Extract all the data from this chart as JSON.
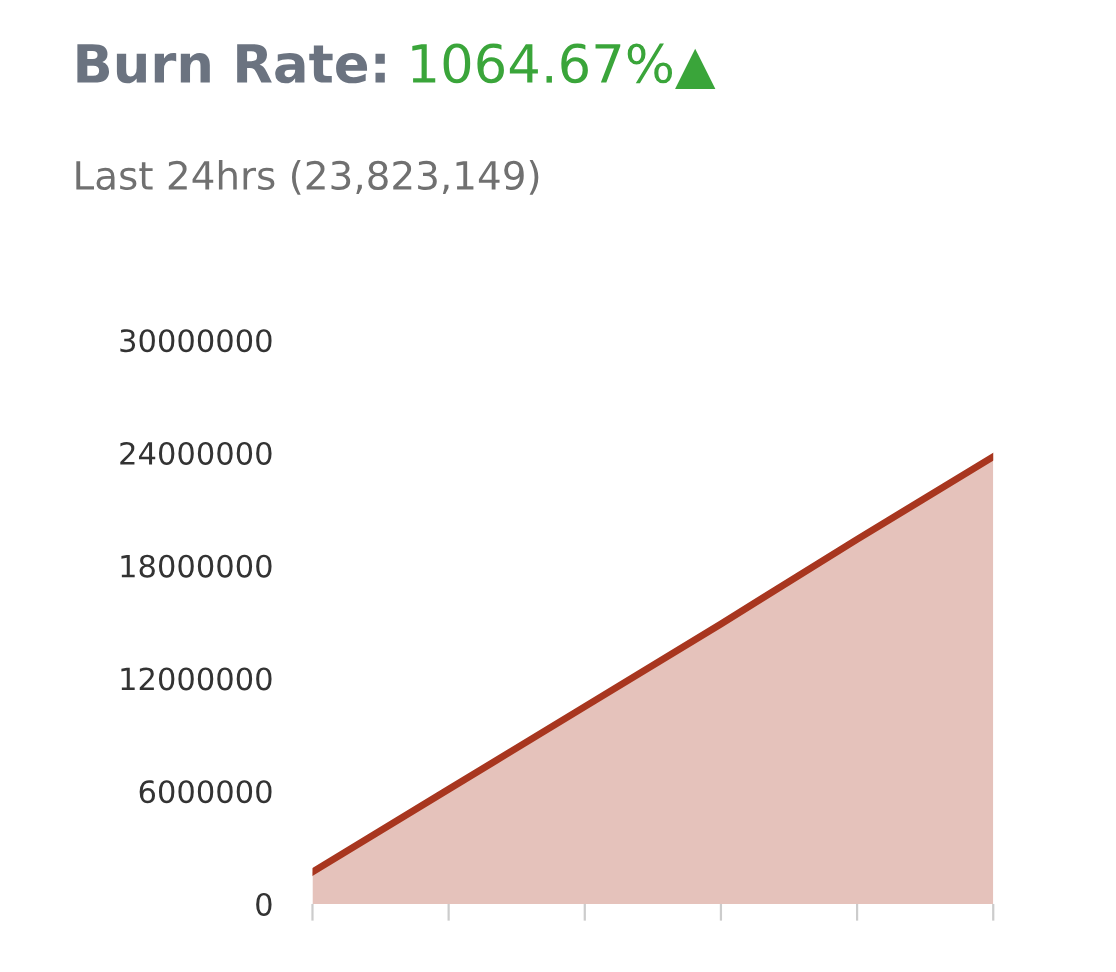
{
  "chart_data": {
    "type": "area",
    "title": "Burn Rate:",
    "subtitle": "Last 24hrs (23,823,149)",
    "annotations": [
      "1064.67%▲"
    ],
    "categories": [
      null,
      null,
      null,
      null,
      null,
      null
    ],
    "series": [
      {
        "color": "#a8361f",
        "values": [
          1700000,
          6100000,
          10500000,
          14900000,
          19400000,
          23800000
        ]
      }
    ],
    "ylim": [
      0,
      30000000
    ],
    "yticks": [
      0,
      6000000,
      12000000,
      18000000,
      24000000,
      30000000
    ],
    "grid": false,
    "legend": false
  }
}
